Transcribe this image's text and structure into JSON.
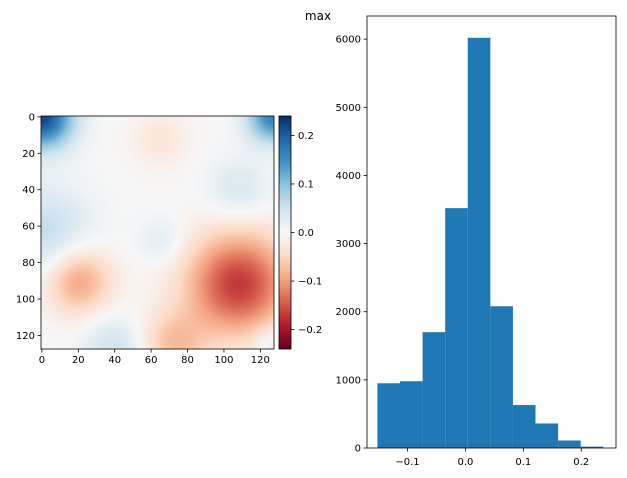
{
  "figure_title": "max",
  "chart_data": [
    {
      "type": "heatmap",
      "title": "",
      "colormap": "RdBu",
      "x_ticks": [
        0,
        20,
        40,
        60,
        80,
        100,
        120
      ],
      "y_ticks": [
        0,
        20,
        40,
        60,
        80,
        100,
        120
      ],
      "xlim": [
        0,
        127
      ],
      "ylim": [
        127,
        0
      ],
      "colorbar": {
        "range": [
          -0.24,
          0.24
        ],
        "ticks": [
          0.2,
          0.1,
          0.0,
          -0.1,
          -0.2
        ],
        "tick_labels": [
          "0.2",
          "0.1",
          "0.0",
          "−0.1",
          "−0.2"
        ]
      },
      "features": [
        {
          "x": 0,
          "y": 0,
          "sigma": 12,
          "value": 0.22
        },
        {
          "x": 127,
          "y": 0,
          "sigma": 10,
          "value": 0.16
        },
        {
          "x": 20,
          "y": 90,
          "sigma": 13,
          "value": -0.1
        },
        {
          "x": 108,
          "y": 92,
          "sigma": 20,
          "value": -0.17
        },
        {
          "x": 72,
          "y": 125,
          "sigma": 13,
          "value": -0.07
        },
        {
          "x": 65,
          "y": 12,
          "sigma": 11,
          "value": -0.03
        },
        {
          "x": 2,
          "y": 64,
          "sigma": 18,
          "value": 0.06
        },
        {
          "x": 40,
          "y": 126,
          "sigma": 12,
          "value": 0.05
        },
        {
          "x": 127,
          "y": 125,
          "sigma": 8,
          "value": 0.04
        },
        {
          "x": 108,
          "y": 40,
          "sigma": 12,
          "value": 0.04
        },
        {
          "x": 66,
          "y": 68,
          "sigma": 9,
          "value": 0.03
        }
      ]
    },
    {
      "type": "bar",
      "title": "",
      "series_color": "#1f77b4",
      "bin_edges": [
        -0.152,
        -0.113,
        -0.074,
        -0.035,
        0.004,
        0.043,
        0.082,
        0.121,
        0.16,
        0.199,
        0.238
      ],
      "values": [
        950,
        980,
        1700,
        3520,
        6020,
        2080,
        630,
        360,
        110,
        20
      ],
      "xlim": [
        -0.17,
        0.26
      ],
      "ylim": [
        0,
        6340
      ],
      "x_ticks": [
        -0.1,
        0.0,
        0.1,
        0.2
      ],
      "x_tick_labels": [
        "−0.1",
        "0.0",
        "0.1",
        "0.2"
      ],
      "y_ticks": [
        0,
        1000,
        2000,
        3000,
        4000,
        5000,
        6000
      ]
    }
  ]
}
